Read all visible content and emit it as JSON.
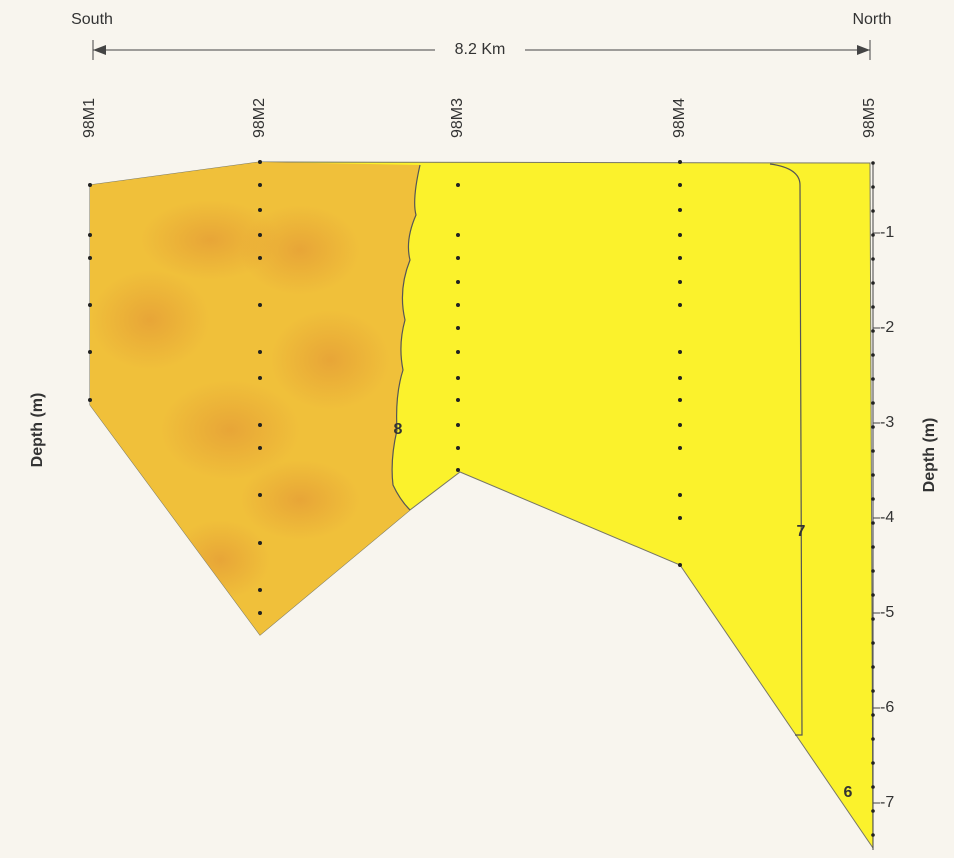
{
  "header": {
    "left": "South",
    "right": "North",
    "distance": "8.2 Km"
  },
  "stations": [
    "98M1",
    "98M2",
    "98M3",
    "98M4",
    "98M5"
  ],
  "axis": {
    "left_title": "Depth (m)",
    "right_title": "Depth (m)",
    "ticks": [
      -1,
      -2,
      -3,
      -4,
      -5,
      -6,
      -7
    ]
  },
  "contours": [
    "8",
    "7",
    "6"
  ]
}
